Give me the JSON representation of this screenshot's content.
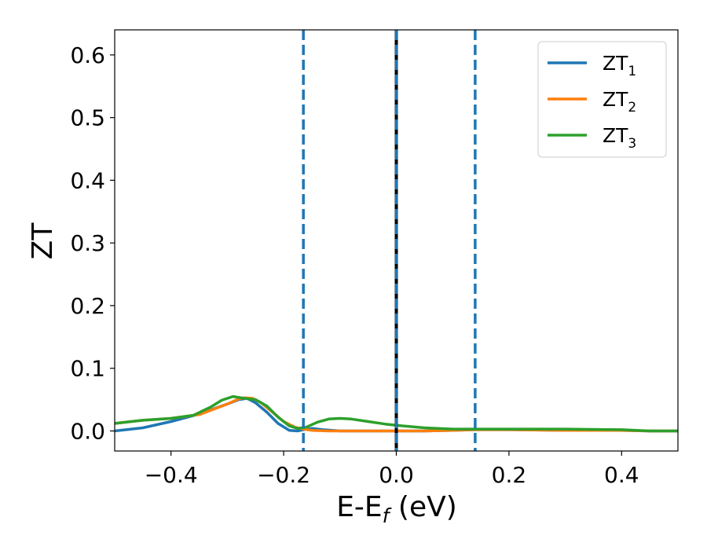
{
  "chart_data": {
    "type": "line",
    "xlabel": "E-E",
    "xlabel_sub": "f",
    "xlabel_unit": " (eV)",
    "ylabel": "ZT",
    "xlim": [
      -0.5,
      0.5
    ],
    "ylim": [
      -0.032,
      0.64
    ],
    "xticks": [
      -0.4,
      -0.2,
      0.0,
      0.2,
      0.4
    ],
    "xtick_labels": [
      "−0.4",
      "−0.2",
      "0.0",
      "0.2",
      "0.4"
    ],
    "yticks": [
      0.0,
      0.1,
      0.2,
      0.3,
      0.4,
      0.5,
      0.6
    ],
    "ytick_labels": [
      "0.0",
      "0.1",
      "0.2",
      "0.3",
      "0.4",
      "0.5",
      "0.6"
    ],
    "grid": false,
    "legend_position": "top-right",
    "vertical_lines": [
      {
        "x": -0.165,
        "color": "#1f77b4",
        "style": "dashed"
      },
      {
        "x": 0.0,
        "color": "#000000",
        "style": "solid"
      },
      {
        "x": 0.0,
        "color": "#1f77b4",
        "style": "dashed"
      },
      {
        "x": 0.14,
        "color": "#1f77b4",
        "style": "dashed"
      }
    ],
    "series": [
      {
        "name": "ZT",
        "name_sub": "1",
        "color": "#1f77b4",
        "x": [
          -0.5,
          -0.45,
          -0.4,
          -0.35,
          -0.3,
          -0.28,
          -0.265,
          -0.25,
          -0.23,
          -0.21,
          -0.19,
          -0.175,
          -0.165,
          -0.15,
          -0.13,
          -0.1,
          -0.05,
          0.0,
          0.05,
          0.1,
          0.14,
          0.2,
          0.3,
          0.4,
          0.45,
          0.5
        ],
        "y": [
          0.0,
          0.005,
          0.015,
          0.027,
          0.043,
          0.05,
          0.052,
          0.045,
          0.03,
          0.012,
          0.001,
          0.0,
          0.002,
          0.004,
          0.002,
          0.0,
          0.0,
          0.0,
          0.0,
          0.001,
          0.002,
          0.002,
          0.001,
          0.001,
          0.0,
          0.0
        ]
      },
      {
        "name": "ZT",
        "name_sub": "2",
        "color": "#ff7f0e",
        "x": [
          -0.5,
          -0.45,
          -0.4,
          -0.35,
          -0.3,
          -0.28,
          -0.27,
          -0.255,
          -0.24,
          -0.22,
          -0.2,
          -0.18,
          -0.165,
          -0.15,
          -0.12,
          -0.08,
          -0.04,
          0.0,
          0.05,
          0.1,
          0.14,
          0.2,
          0.3,
          0.4,
          0.45,
          0.5
        ],
        "y": [
          0.012,
          0.017,
          0.02,
          0.026,
          0.043,
          0.051,
          0.053,
          0.052,
          0.045,
          0.03,
          0.015,
          0.006,
          0.003,
          0.001,
          0.0,
          0.0,
          0.0,
          0.0,
          0.0,
          0.001,
          0.002,
          0.002,
          0.001,
          0.001,
          0.0,
          0.0
        ]
      },
      {
        "name": "ZT",
        "name_sub": "3",
        "color": "#2ca02c",
        "x": [
          -0.5,
          -0.45,
          -0.4,
          -0.36,
          -0.33,
          -0.31,
          -0.29,
          -0.27,
          -0.25,
          -0.23,
          -0.21,
          -0.19,
          -0.175,
          -0.16,
          -0.14,
          -0.12,
          -0.1,
          -0.08,
          -0.05,
          -0.02,
          0.0,
          0.05,
          0.1,
          0.14,
          0.2,
          0.3,
          0.4,
          0.45,
          0.5
        ],
        "y": [
          0.012,
          0.017,
          0.02,
          0.025,
          0.038,
          0.049,
          0.055,
          0.052,
          0.05,
          0.04,
          0.022,
          0.008,
          0.004,
          0.006,
          0.014,
          0.019,
          0.02,
          0.019,
          0.015,
          0.011,
          0.009,
          0.005,
          0.003,
          0.003,
          0.003,
          0.003,
          0.002,
          0.0,
          0.0
        ]
      }
    ]
  }
}
